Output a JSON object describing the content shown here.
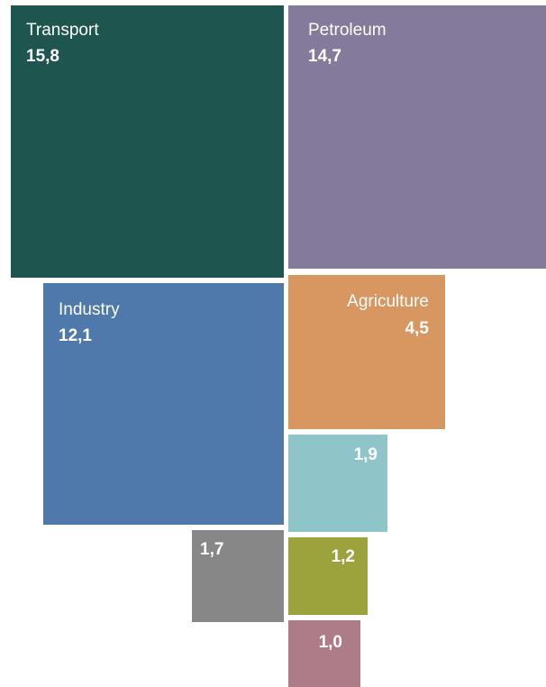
{
  "chart_data": {
    "type": "treemap",
    "title": "",
    "items": [
      {
        "label": "Transport",
        "value": 15.8,
        "value_text": "15,8",
        "color": "#1e564f"
      },
      {
        "label": "Petroleum",
        "value": 14.7,
        "value_text": "14,7",
        "color": "#837a9c"
      },
      {
        "label": "Industry",
        "value": 12.1,
        "value_text": "12,1",
        "color": "#4f78ab"
      },
      {
        "label": "Agriculture",
        "value": 4.5,
        "value_text": "4,5",
        "color": "#d89760"
      },
      {
        "label": "",
        "value": 1.9,
        "value_text": "1,9",
        "color": "#8fc4c8"
      },
      {
        "label": "",
        "value": 1.7,
        "value_text": "1,7",
        "color": "#878787"
      },
      {
        "label": "",
        "value": 1.2,
        "value_text": "1,2",
        "color": "#9ca33c"
      },
      {
        "label": "",
        "value": 1.0,
        "value_text": "1,0",
        "color": "#ae7b88"
      }
    ]
  }
}
